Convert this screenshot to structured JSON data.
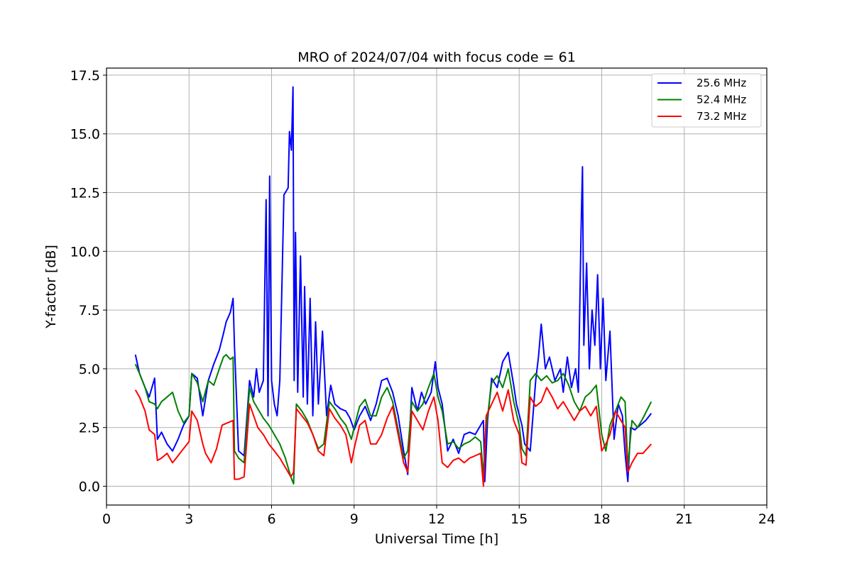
{
  "chart_data": {
    "type": "line",
    "title": "MRO of 2024/07/04 with focus code = 61",
    "xlabel": "Universal Time [h]",
    "ylabel": "Y-factor [dB]",
    "xlim": [
      0,
      24
    ],
    "ylim": [
      -0.8,
      17.8
    ],
    "xticks": [
      0,
      3,
      6,
      9,
      12,
      15,
      18,
      21,
      24
    ],
    "xtick_labels": [
      "0",
      "3",
      "6",
      "9",
      "12",
      "15",
      "18",
      "21",
      "24"
    ],
    "yticks": [
      0,
      2.5,
      5,
      7.5,
      10,
      12.5,
      15,
      17.5
    ],
    "ytick_labels": [
      "0.0",
      "2.5",
      "5.0",
      "7.5",
      "10.0",
      "12.5",
      "15.0",
      "17.5"
    ],
    "grid": true,
    "legend_position": "top-right",
    "series": [
      {
        "name": "25.6 MHz",
        "color": "#0000ff",
        "x": [
          1.05,
          1.2,
          1.4,
          1.55,
          1.75,
          1.85,
          2.0,
          2.2,
          2.4,
          2.6,
          2.8,
          3.0,
          3.1,
          3.3,
          3.5,
          3.7,
          3.9,
          4.1,
          4.25,
          4.35,
          4.5,
          4.6,
          4.65,
          4.8,
          5.0,
          5.2,
          5.35,
          5.45,
          5.55,
          5.7,
          5.8,
          5.87,
          5.93,
          6.0,
          6.1,
          6.2,
          6.3,
          6.45,
          6.6,
          6.65,
          6.72,
          6.78,
          6.82,
          6.87,
          6.95,
          7.05,
          7.15,
          7.2,
          7.3,
          7.4,
          7.5,
          7.6,
          7.7,
          7.85,
          8.0,
          8.15,
          8.3,
          8.5,
          8.7,
          8.85,
          9.0,
          9.2,
          9.4,
          9.6,
          9.8,
          10.0,
          10.2,
          10.4,
          10.6,
          10.8,
          10.95,
          11.1,
          11.3,
          11.45,
          11.6,
          11.8,
          11.95,
          12.05,
          12.2,
          12.4,
          12.6,
          12.8,
          13.0,
          13.2,
          13.4,
          13.6,
          13.7,
          13.75,
          13.85,
          14.0,
          14.2,
          14.4,
          14.6,
          14.8,
          14.9,
          15.1,
          15.2,
          15.4,
          15.6,
          15.7,
          15.8,
          15.95,
          16.1,
          16.3,
          16.5,
          16.6,
          16.75,
          16.9,
          17.05,
          17.15,
          17.25,
          17.3,
          17.35,
          17.45,
          17.55,
          17.65,
          17.75,
          17.85,
          17.95,
          18.05,
          18.15,
          18.3,
          18.45,
          18.6,
          18.75,
          18.85,
          18.95,
          19.05,
          19.2,
          19.4,
          19.6,
          19.8
        ],
        "y": [
          5.6,
          4.8,
          4.2,
          3.8,
          4.6,
          2.0,
          2.3,
          1.8,
          1.5,
          2.0,
          2.6,
          3.0,
          4.8,
          4.6,
          3.0,
          4.5,
          5.2,
          5.8,
          6.5,
          7.0,
          7.4,
          8.0,
          6.0,
          1.5,
          1.3,
          4.5,
          3.8,
          5.0,
          4.0,
          4.5,
          12.2,
          3.0,
          13.2,
          4.5,
          3.5,
          3.0,
          4.5,
          12.4,
          12.7,
          15.1,
          14.3,
          17.0,
          4.5,
          10.8,
          4.0,
          9.8,
          3.8,
          8.5,
          3.5,
          8.0,
          3.0,
          7.0,
          3.5,
          6.6,
          3.0,
          4.3,
          3.5,
          3.3,
          3.2,
          2.9,
          2.4,
          3.0,
          3.4,
          2.8,
          3.5,
          4.5,
          4.6,
          4.0,
          3.0,
          1.5,
          0.5,
          4.2,
          3.2,
          4.0,
          3.5,
          4.0,
          5.3,
          4.2,
          3.5,
          1.5,
          2.0,
          1.4,
          2.2,
          2.3,
          2.2,
          2.6,
          2.8,
          0.2,
          2.8,
          4.6,
          4.2,
          5.3,
          5.7,
          4.3,
          3.5,
          2.6,
          1.8,
          1.5,
          4.5,
          5.5,
          6.9,
          5.0,
          5.5,
          4.5,
          5.0,
          4.0,
          5.5,
          4.2,
          5.0,
          4.0,
          10.9,
          13.6,
          6.0,
          9.5,
          5.0,
          7.5,
          6.0,
          9.0,
          5.0,
          8.0,
          4.5,
          6.6,
          2.0,
          3.5,
          3.0,
          1.4,
          0.2,
          2.5,
          2.4,
          2.6,
          2.8,
          3.1
        ]
      },
      {
        "name": "52.4 MHz",
        "color": "#008000",
        "x": [
          1.05,
          1.2,
          1.4,
          1.55,
          1.75,
          1.85,
          2.0,
          2.2,
          2.4,
          2.6,
          2.8,
          3.0,
          3.1,
          3.3,
          3.5,
          3.7,
          3.9,
          4.1,
          4.25,
          4.35,
          4.5,
          4.6,
          4.65,
          4.8,
          5.0,
          5.2,
          5.35,
          5.5,
          5.7,
          5.9,
          6.1,
          6.3,
          6.5,
          6.7,
          6.8,
          6.9,
          7.1,
          7.3,
          7.5,
          7.7,
          7.9,
          8.1,
          8.3,
          8.5,
          8.7,
          8.9,
          9.0,
          9.2,
          9.4,
          9.6,
          9.8,
          10.0,
          10.2,
          10.4,
          10.6,
          10.8,
          10.95,
          11.1,
          11.3,
          11.5,
          11.7,
          11.9,
          12.05,
          12.2,
          12.4,
          12.6,
          12.8,
          13.0,
          13.2,
          13.4,
          13.6,
          13.7,
          13.8,
          14.0,
          14.2,
          14.4,
          14.6,
          14.8,
          15.0,
          15.1,
          15.25,
          15.4,
          15.6,
          15.8,
          16.0,
          16.2,
          16.4,
          16.6,
          16.8,
          17.0,
          17.2,
          17.4,
          17.6,
          17.8,
          18.0,
          18.15,
          18.3,
          18.5,
          18.7,
          18.85,
          18.95,
          19.1,
          19.3,
          19.5,
          19.8
        ],
        "y": [
          5.2,
          4.8,
          4.2,
          3.6,
          3.5,
          3.3,
          3.6,
          3.8,
          4.0,
          3.2,
          2.7,
          3.0,
          4.8,
          4.4,
          3.6,
          4.5,
          4.3,
          5.0,
          5.5,
          5.6,
          5.4,
          5.5,
          1.5,
          1.2,
          1.0,
          4.2,
          3.6,
          3.3,
          2.9,
          2.6,
          2.2,
          1.8,
          1.2,
          0.4,
          0.1,
          3.5,
          3.2,
          2.8,
          2.2,
          1.6,
          1.8,
          3.6,
          3.3,
          2.9,
          2.6,
          2.0,
          2.5,
          3.4,
          3.7,
          3.0,
          3.0,
          3.8,
          4.2,
          3.6,
          2.4,
          1.2,
          1.5,
          3.6,
          3.2,
          3.5,
          4.2,
          4.8,
          3.8,
          3.2,
          1.8,
          1.9,
          1.6,
          1.8,
          1.9,
          2.1,
          1.9,
          0.5,
          2.5,
          4.4,
          4.7,
          4.2,
          5.0,
          3.6,
          2.6,
          1.6,
          1.3,
          4.5,
          4.8,
          4.5,
          4.7,
          4.4,
          4.5,
          4.8,
          4.3,
          3.6,
          3.2,
          3.8,
          4.0,
          4.3,
          2.2,
          1.5,
          2.6,
          3.2,
          3.8,
          3.6,
          0.8,
          2.8,
          2.5,
          2.9,
          3.6
        ]
      },
      {
        "name": "73.2 MHz",
        "color": "#ff0000",
        "x": [
          1.05,
          1.2,
          1.4,
          1.55,
          1.75,
          1.85,
          2.0,
          2.2,
          2.4,
          2.6,
          2.8,
          3.0,
          3.1,
          3.3,
          3.5,
          3.6,
          3.8,
          4.0,
          4.2,
          4.4,
          4.6,
          4.65,
          4.8,
          5.0,
          5.2,
          5.35,
          5.5,
          5.7,
          5.9,
          6.1,
          6.3,
          6.5,
          6.7,
          6.8,
          6.9,
          7.1,
          7.3,
          7.5,
          7.7,
          7.9,
          8.1,
          8.3,
          8.5,
          8.7,
          8.9,
          9.0,
          9.2,
          9.4,
          9.6,
          9.8,
          10.0,
          10.2,
          10.4,
          10.6,
          10.8,
          10.95,
          11.1,
          11.3,
          11.5,
          11.7,
          11.9,
          12.05,
          12.2,
          12.4,
          12.6,
          12.8,
          13.0,
          13.2,
          13.4,
          13.6,
          13.7,
          13.8,
          14.0,
          14.2,
          14.4,
          14.6,
          14.8,
          15.0,
          15.1,
          15.25,
          15.4,
          15.6,
          15.8,
          16.0,
          16.2,
          16.4,
          16.6,
          16.8,
          17.0,
          17.2,
          17.4,
          17.6,
          17.8,
          18.0,
          18.15,
          18.3,
          18.5,
          18.7,
          18.85,
          18.95,
          19.1,
          19.3,
          19.5,
          19.8
        ],
        "y": [
          4.1,
          3.8,
          3.2,
          2.4,
          2.2,
          1.1,
          1.2,
          1.4,
          1.0,
          1.3,
          1.6,
          1.9,
          3.2,
          2.8,
          1.8,
          1.4,
          1.0,
          1.6,
          2.6,
          2.7,
          2.8,
          0.3,
          0.3,
          0.4,
          3.5,
          3.0,
          2.5,
          2.2,
          1.8,
          1.5,
          1.2,
          0.8,
          0.4,
          0.6,
          3.3,
          3.0,
          2.7,
          2.2,
          1.5,
          1.3,
          3.3,
          2.9,
          2.6,
          2.2,
          1.0,
          1.6,
          2.6,
          2.8,
          1.8,
          1.8,
          2.2,
          2.9,
          3.4,
          2.2,
          1.0,
          0.6,
          3.2,
          2.8,
          2.4,
          3.2,
          3.8,
          2.8,
          1.0,
          0.8,
          1.1,
          1.2,
          1.0,
          1.2,
          1.3,
          1.4,
          0.0,
          3.0,
          3.5,
          4.0,
          3.2,
          4.1,
          2.8,
          2.2,
          1.0,
          0.9,
          3.8,
          3.4,
          3.6,
          4.2,
          3.8,
          3.3,
          3.6,
          3.2,
          2.8,
          3.2,
          3.4,
          3.0,
          3.4,
          1.5,
          1.8,
          2.2,
          3.2,
          2.8,
          2.5,
          0.6,
          1.0,
          1.4,
          1.4,
          1.8
        ]
      }
    ]
  }
}
